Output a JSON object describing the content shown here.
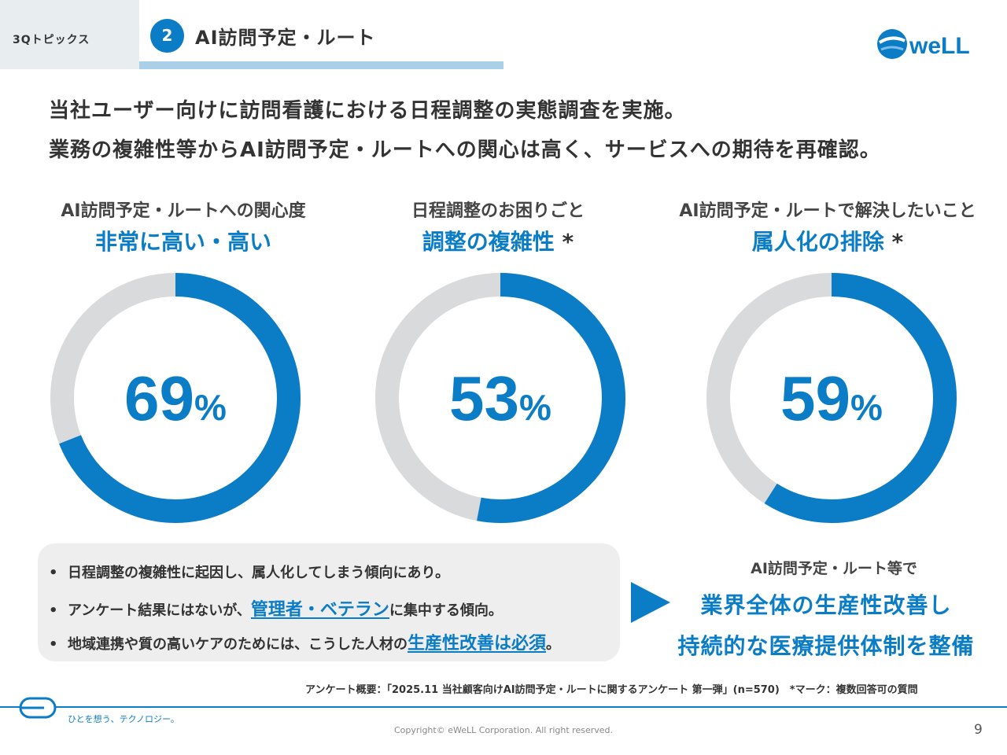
{
  "header": {
    "topic_label": "3Qトピックス",
    "section_number": "2",
    "section_title": "AI訪問予定・ルート",
    "logo_text": "weLL"
  },
  "headline": {
    "line1": "当社ユーザー向けに訪問看護における日程調整の実態調査を実施。",
    "line2": "業務の複雑性等からAI訪問予定・ルートへの関心は高く、サービスへの期待を再確認。"
  },
  "chart_data": [
    {
      "type": "pie",
      "subtitle": "AI訪問予定・ルートへの関心度",
      "title": "非常に高い・高い",
      "asterisk": "",
      "value": 69,
      "unit": "%"
    },
    {
      "type": "pie",
      "subtitle": "日程調整のお困りごと",
      "title": "調整の複雑性",
      "asterisk": "*",
      "value": 53,
      "unit": "%"
    },
    {
      "type": "pie",
      "subtitle": "AI訪問予定・ルートで解決したいこと",
      "title": "属人化の排除",
      "asterisk": "*",
      "value": 59,
      "unit": "%"
    }
  ],
  "colors": {
    "accent": "#0b7cc6",
    "track": "#d9dadb",
    "panel": "#eeeeee"
  },
  "summary": {
    "bullets": [
      {
        "dot": "•",
        "pre": "日程調整の複雑性に起因し、属人化してしまう傾向にあり。",
        "highlight": "",
        "post": ""
      },
      {
        "dot": "•",
        "pre": "アンケート結果にはないが、",
        "highlight": "管理者・ベテラン",
        "post": "に集中する傾向。"
      },
      {
        "dot": "•",
        "pre": "地域連携や質の高いケアのためには、こうした人材の",
        "highlight": "生産性改善は必須",
        "post": "。"
      }
    ]
  },
  "conclusion": {
    "sub": "AI訪問予定・ルート等で",
    "line1": "業界全体の生産性改善し",
    "line2": "持続的な医療提供体制を整備"
  },
  "survey_note": "アンケート概要：「2025.11 当社顧客向けAI訪問予定・ルートに関するアンケート 第一弾」(n=570)　*マーク：複数回答可の質問",
  "footer": {
    "tagline": "ひとを想う、テクノロジー。",
    "copyright": "Copyright© eWeLL Corporation. All right reserved.",
    "page_number": "9"
  }
}
